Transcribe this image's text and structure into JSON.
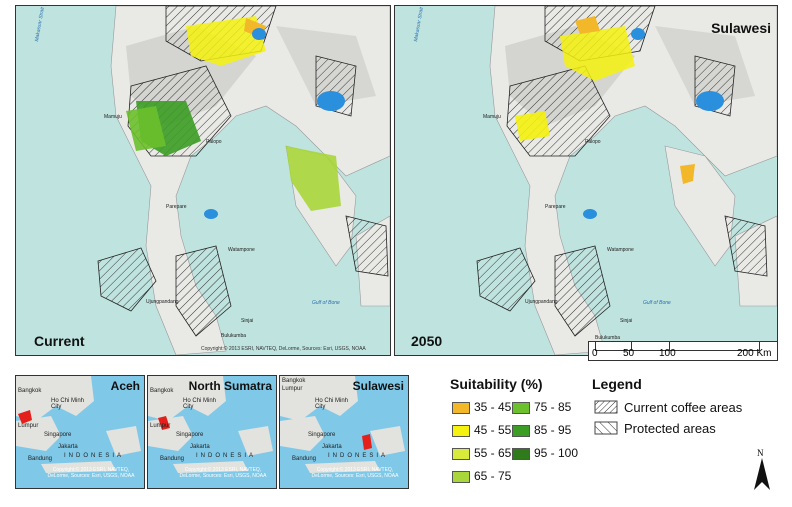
{
  "map_current": {
    "label": "Current",
    "cities": [
      "Mamuju",
      "Palopo",
      "Parepare",
      "Watampone",
      "Ujungpandang",
      "Sinjai",
      "Bulukumba"
    ],
    "water_labels": [
      "Makassar Strait",
      "Gulf of Bone"
    ],
    "copyright": "Copyright:© 2013 ESRI, NAVTEQ, DeLorme, Sources: Esri, USGS, NOAA"
  },
  "map_2050": {
    "label": "2050",
    "region": "Sulawesi",
    "cities": [
      "Mamuju",
      "Palopo",
      "Parepare",
      "Watampone",
      "Ujungpandang",
      "Sinjai",
      "Bulukumba"
    ],
    "water_labels": [
      "Makassar Strait",
      "Gulf of Bone"
    ]
  },
  "scale_bar": {
    "ticks": [
      "0",
      "50",
      "100",
      "200 Km"
    ]
  },
  "insets": [
    {
      "title": "Aceh",
      "cities": [
        "Lumpur",
        "Bangkok",
        "Ho Chi Minh City",
        "Singapore",
        "Jakarta",
        "Bandung"
      ],
      "country": "INDONESIA",
      "copyright": "Copyright:© 2013 ESRI, NAVTEQ, DeLorme, Sources: Esri, USGS, NOAA"
    },
    {
      "title": "North Sumatra",
      "cities": [
        "Lumpur",
        "Bangkok",
        "Ho Chi Minh City",
        "Singapore",
        "Jakarta",
        "Bandung"
      ],
      "country": "INDONESIA",
      "copyright": "Copyright:© 2013 ESRI, NAVTEQ, DeLorme, Sources: Esri, USGS, NOAA"
    },
    {
      "title": "Sulawesi",
      "cities": [
        "Lumpur",
        "Bangkok",
        "Ho Chi Minh City",
        "Singapore",
        "Jakarta",
        "Bandung"
      ],
      "country": "INDONESIA",
      "copyright": "Copyright:© 2013 ESRI, NAVTEQ, DeLorme, Sources: Esri, USGS, NOAA"
    }
  ],
  "suitability": {
    "title": "Suitability (%)",
    "classes": [
      {
        "range": "35 - 45",
        "color": "#f3b82a"
      },
      {
        "range": "45 - 55",
        "color": "#f4f20e"
      },
      {
        "range": "55 - 65",
        "color": "#d8ea3a"
      },
      {
        "range": "65 - 75",
        "color": "#a9d63a"
      },
      {
        "range": "75 - 85",
        "color": "#6cc02b"
      },
      {
        "range": "85 - 95",
        "color": "#3c9d25"
      },
      {
        "range": "95 - 100",
        "color": "#2f7b1c"
      }
    ]
  },
  "legend": {
    "title": "Legend",
    "items": [
      "Current coffee areas",
      "Protected areas"
    ]
  },
  "north_arrow": "N"
}
